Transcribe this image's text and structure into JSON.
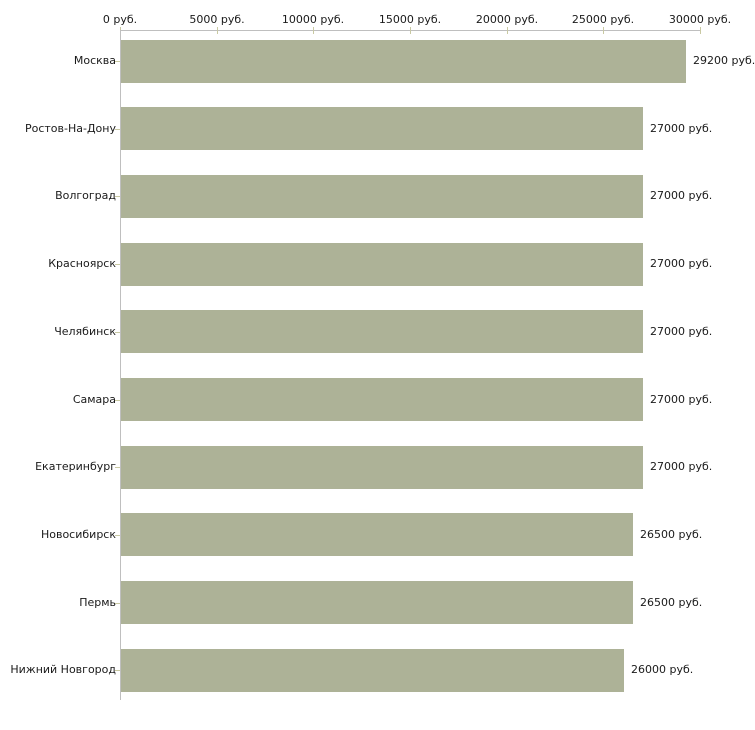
{
  "chart_data": {
    "type": "bar",
    "orientation": "horizontal",
    "categories": [
      "Москва",
      "Ростов-На-Дону",
      "Волгоград",
      "Красноярск",
      "Челябинск",
      "Самара",
      "Екатеринбург",
      "Новосибирск",
      "Пермь",
      "Нижний Новгород"
    ],
    "values": [
      29200,
      27000,
      27000,
      27000,
      27000,
      27000,
      27000,
      26500,
      26500,
      26000
    ],
    "value_labels": [
      "29200 руб.",
      "27000 руб.",
      "27000 руб.",
      "27000 руб.",
      "27000 руб.",
      "27000 руб.",
      "27000 руб.",
      "26500 руб.",
      "26500 руб.",
      "26000 руб."
    ],
    "unit": "руб.",
    "x_axis": {
      "position": "top",
      "range": [
        0,
        30000
      ],
      "tick_values": [
        0,
        5000,
        10000,
        15000,
        20000,
        25000,
        30000
      ],
      "tick_labels": [
        "0 руб.",
        "5000 руб.",
        "10000 руб.",
        "15000 руб.",
        "20000 руб.",
        "25000 руб.",
        "30000 руб."
      ]
    },
    "grid": false,
    "legend": false,
    "colors": {
      "bar": "#adb297",
      "axis_line": "#bfbfbf",
      "tick": "#c9c9a3",
      "text": "#1a1a1a",
      "background": "#ffffff"
    }
  }
}
